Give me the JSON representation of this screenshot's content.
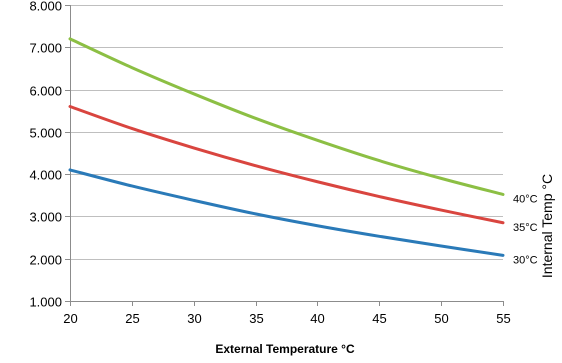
{
  "chart_data": {
    "type": "line",
    "title": "",
    "xlabel": "External Temperature °C",
    "ylabel": "Internal Temp °C",
    "x": [
      20,
      25,
      30,
      35,
      40,
      45,
      50,
      55
    ],
    "xlim": [
      20,
      55
    ],
    "ylim": [
      1.0,
      8.0
    ],
    "x_ticks": [
      "20",
      "25",
      "30",
      "35",
      "40",
      "45",
      "50",
      "55"
    ],
    "y_ticks": [
      "1.000",
      "2.000",
      "3.000",
      "4.000",
      "5.000",
      "6.000",
      "7.000",
      "8.000"
    ],
    "grid": "horizontal",
    "legend": "none",
    "series": [
      {
        "name": "40°C",
        "color": "#8cbf44",
        "values": [
          7.2,
          6.52,
          5.9,
          5.32,
          4.8,
          4.32,
          3.9,
          3.52
        ]
      },
      {
        "name": "35°C",
        "color": "#d9453f",
        "values": [
          5.6,
          5.08,
          4.62,
          4.2,
          3.82,
          3.47,
          3.15,
          2.85
        ]
      },
      {
        "name": "30°C",
        "color": "#2a7ab8",
        "values": [
          4.1,
          3.72,
          3.38,
          3.06,
          2.78,
          2.53,
          2.3,
          2.08
        ]
      }
    ]
  }
}
